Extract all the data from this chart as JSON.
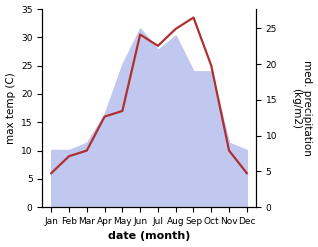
{
  "months": [
    "Jan",
    "Feb",
    "Mar",
    "Apr",
    "May",
    "Jun",
    "Jul",
    "Aug",
    "Sep",
    "Oct",
    "Nov",
    "Dec"
  ],
  "temp_max": [
    6,
    9,
    10,
    16,
    17,
    30.5,
    28.5,
    31.5,
    33.5,
    25,
    10,
    6
  ],
  "precip": [
    8,
    8,
    9,
    13,
    20,
    25,
    22,
    24,
    19,
    19,
    9,
    8
  ],
  "temp_ylim": [
    0,
    35
  ],
  "precip_ylim": [
    0,
    27.7
  ],
  "temp_color": "#b03030",
  "precip_color_fill": "#c0c8f0",
  "left_label": "max temp (C)",
  "right_label": "med. precipitation\n(kg/m2)",
  "xlabel": "date (month)",
  "xlabel_fontsize": 8,
  "ylabel_fontsize": 7.5,
  "tick_fontsize": 6.5,
  "left_ticks": [
    0,
    5,
    10,
    15,
    20,
    25,
    30,
    35
  ],
  "right_ticks": [
    0,
    5,
    10,
    15,
    20,
    25
  ],
  "bg_color": "#ffffff",
  "line_width": 1.6
}
